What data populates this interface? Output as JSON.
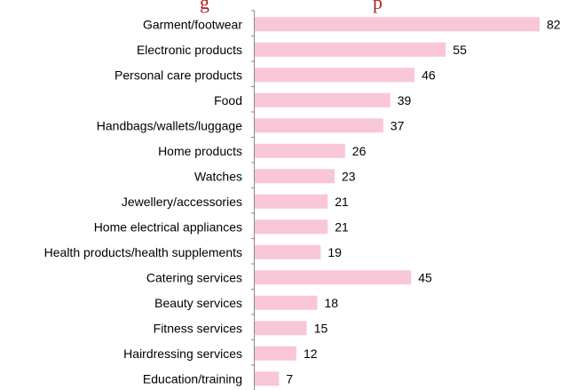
{
  "chart_data": {
    "type": "bar",
    "orientation": "horizontal",
    "title": "",
    "xlabel": "",
    "ylabel": "",
    "categories": [
      "Garment/footwear",
      "Electronic products",
      "Personal care products",
      "Food",
      "Handbags/wallets/luggage",
      "Home products",
      "Watches",
      "Jewellery/accessories",
      "Home electrical appliances",
      "Health products/health supplements",
      "Catering services",
      "Beauty services",
      "Fitness services",
      "Hairdressing services",
      "Education/training"
    ],
    "values": [
      82,
      55,
      46,
      39,
      37,
      26,
      23,
      21,
      21,
      19,
      45,
      18,
      15,
      12,
      7
    ],
    "xlim": [
      0,
      82
    ],
    "grid": false,
    "data_labels": true,
    "bar_color": "#f9c6d9",
    "axis_color": "#888888"
  }
}
